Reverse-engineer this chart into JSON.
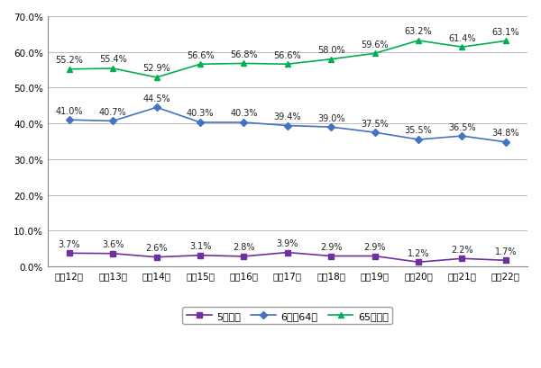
{
  "x_labels": [
    "平成12年",
    "平成13年",
    "平成14年",
    "平成15年",
    "平成16年",
    "平成17年",
    "平成18年",
    "平成19年",
    "平成20年",
    "平成21年",
    "平成22年"
  ],
  "series": [
    {
      "name": "5歳以下",
      "values": [
        3.7,
        3.6,
        2.6,
        3.1,
        2.8,
        3.9,
        2.9,
        2.9,
        1.2,
        2.2,
        1.7
      ],
      "color": "#7030A0",
      "marker": "s",
      "markersize": 4,
      "linewidth": 1.2
    },
    {
      "name": "6歳～64歳",
      "values": [
        41.0,
        40.7,
        44.5,
        40.3,
        40.3,
        39.4,
        39.0,
        37.5,
        35.5,
        36.5,
        34.8
      ],
      "color": "#4472C4",
      "marker": "D",
      "markersize": 4,
      "linewidth": 1.2
    },
    {
      "name": "65歳以上",
      "values": [
        55.2,
        55.4,
        52.9,
        56.6,
        56.8,
        56.6,
        58.0,
        59.6,
        63.2,
        61.4,
        63.1
      ],
      "color": "#00B050",
      "marker": "^",
      "markersize": 5,
      "linewidth": 1.2
    }
  ],
  "ylim": [
    0,
    70
  ],
  "yticks": [
    0,
    10,
    20,
    30,
    40,
    50,
    60,
    70
  ],
  "ytick_labels": [
    "0.0%",
    "10.0%",
    "20.0%",
    "30.0%",
    "40.0%",
    "50.0%",
    "60.0%",
    "70.0%"
  ],
  "background_color": "#FFFFFF",
  "grid_color": "#BBBBBB",
  "label_fontsize": 7,
  "tick_fontsize": 7.5,
  "legend_fontsize": 8
}
